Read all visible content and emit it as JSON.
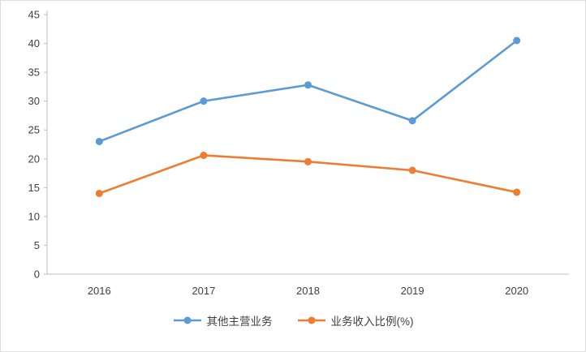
{
  "chart_data": {
    "type": "line",
    "categories": [
      "2016",
      "2017",
      "2018",
      "2019",
      "2020"
    ],
    "series": [
      {
        "name": "其他主营业务",
        "color": "#5B9BD5",
        "values": [
          23.0,
          30.0,
          32.8,
          26.6,
          40.5
        ]
      },
      {
        "name": "业务收入比例(%)",
        "color": "#ED7D31",
        "values": [
          14.0,
          20.6,
          19.5,
          18.0,
          14.2
        ]
      }
    ],
    "title": "",
    "xlabel": "",
    "ylabel": "",
    "ylim": [
      0,
      45
    ],
    "yticks": [
      0,
      5,
      10,
      15,
      20,
      25,
      30,
      35,
      40,
      45
    ],
    "grid": false,
    "legend_position": "bottom",
    "marker": "circle"
  },
  "colors": {
    "axis": "#BFBFBF",
    "tick_text": "#3F3F3F",
    "background": "#FFFFFF"
  }
}
